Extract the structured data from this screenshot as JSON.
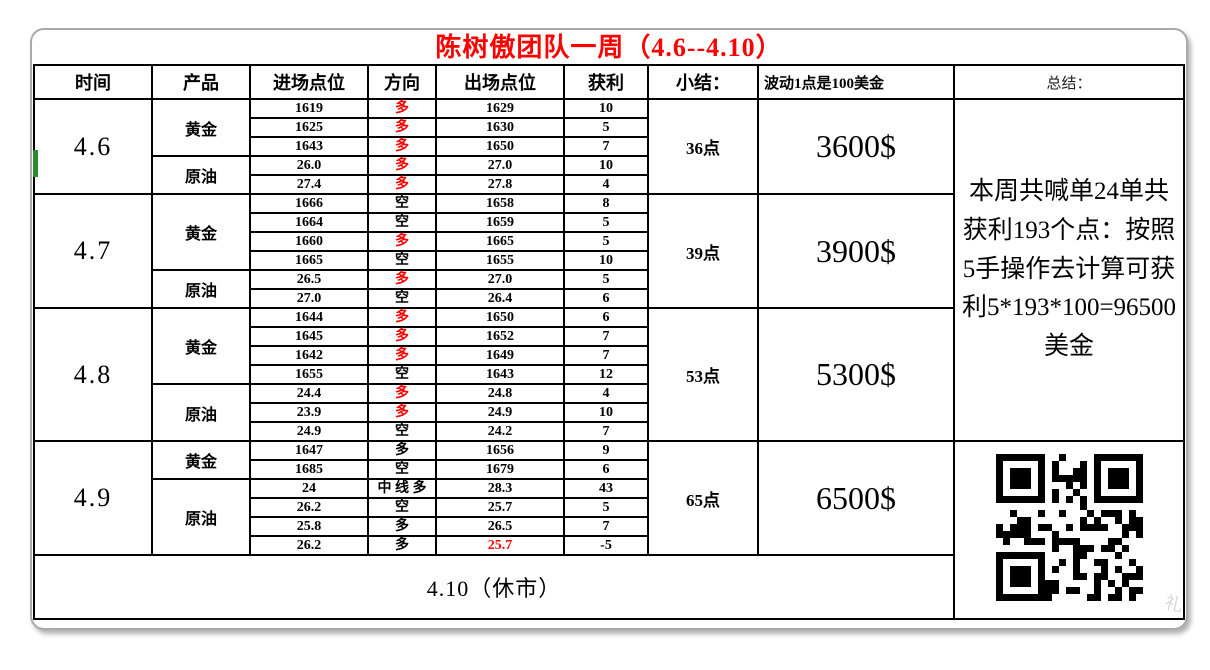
{
  "title": "陈树傲团队一周（4.6--4.10）",
  "colors": {
    "title_red": "#FF0000",
    "direction_red": "#FF0000",
    "loss_exit_red": "#FF0000",
    "table_border": "#000000",
    "card_border": "#A9A9A9",
    "green_mark": "#2E8B2E"
  },
  "headers": {
    "time": "时间",
    "product": "产品",
    "entry": "进场点位",
    "direction": "方向",
    "exit": "出场点位",
    "profit": "获利",
    "summary": "小结：",
    "note": "波动1点是100美金",
    "conclusion": "总结："
  },
  "sections": [
    {
      "date": "4.6",
      "points": "36点",
      "amount": "3600$",
      "groups": [
        {
          "product": "黄金",
          "trades": [
            {
              "entry": "1619",
              "direction": "多",
              "dir_red": true,
              "exit": "1629",
              "profit": "10"
            },
            {
              "entry": "1625",
              "direction": "多",
              "dir_red": true,
              "exit": "1630",
              "profit": "5"
            },
            {
              "entry": "1643",
              "direction": "多",
              "dir_red": true,
              "exit": "1650",
              "profit": "7"
            }
          ]
        },
        {
          "product": "原油",
          "trades": [
            {
              "entry": "26.0",
              "direction": "多",
              "dir_red": true,
              "exit": "27.0",
              "profit": "10"
            },
            {
              "entry": "27.4",
              "direction": "多",
              "dir_red": true,
              "exit": "27.8",
              "profit": "4"
            }
          ]
        }
      ]
    },
    {
      "date": "4.7",
      "points": "39点",
      "amount": "3900$",
      "groups": [
        {
          "product": "黄金",
          "trades": [
            {
              "entry": "1666",
              "direction": "空",
              "dir_red": false,
              "exit": "1658",
              "profit": "8"
            },
            {
              "entry": "1664",
              "direction": "空",
              "dir_red": false,
              "exit": "1659",
              "profit": "5"
            },
            {
              "entry": "1660",
              "direction": "多",
              "dir_red": true,
              "exit": "1665",
              "profit": "5"
            },
            {
              "entry": "1665",
              "direction": "空",
              "dir_red": false,
              "exit": "1655",
              "profit": "10"
            }
          ]
        },
        {
          "product": "原油",
          "trades": [
            {
              "entry": "26.5",
              "direction": "多",
              "dir_red": true,
              "exit": "27.0",
              "profit": "5"
            },
            {
              "entry": "27.0",
              "direction": "空",
              "dir_red": false,
              "exit": "26.4",
              "profit": "6"
            }
          ]
        }
      ]
    },
    {
      "date": "4.8",
      "points": "53点",
      "amount": "5300$",
      "groups": [
        {
          "product": "黄金",
          "trades": [
            {
              "entry": "1644",
              "direction": "多",
              "dir_red": true,
              "exit": "1650",
              "profit": "6"
            },
            {
              "entry": "1645",
              "direction": "多",
              "dir_red": true,
              "exit": "1652",
              "profit": "7"
            },
            {
              "entry": "1642",
              "direction": "多",
              "dir_red": true,
              "exit": "1649",
              "profit": "7"
            },
            {
              "entry": "1655",
              "direction": "空",
              "dir_red": false,
              "exit": "1643",
              "profit": "12"
            }
          ]
        },
        {
          "product": "原油",
          "trades": [
            {
              "entry": "24.4",
              "direction": "多",
              "dir_red": true,
              "exit": "24.8",
              "profit": "4"
            },
            {
              "entry": "23.9",
              "direction": "多",
              "dir_red": true,
              "exit": "24.9",
              "profit": "10"
            },
            {
              "entry": "24.9",
              "direction": "空",
              "dir_red": false,
              "exit": "24.2",
              "profit": "7"
            }
          ]
        }
      ]
    },
    {
      "date": "4.9",
      "points": "65点",
      "amount": "6500$",
      "groups": [
        {
          "product": "黄金",
          "trades": [
            {
              "entry": "1647",
              "direction": "多",
              "dir_red": false,
              "exit": "1656",
              "profit": "9"
            },
            {
              "entry": "1685",
              "direction": "空",
              "dir_red": false,
              "exit": "1679",
              "profit": "6"
            }
          ]
        },
        {
          "product": "原油",
          "trades": [
            {
              "entry": "24",
              "direction": "中 线 多",
              "dir_red": false,
              "exit": "28.3",
              "profit": "43"
            },
            {
              "entry": "26.2",
              "direction": "空",
              "dir_red": false,
              "exit": "25.7",
              "profit": "5"
            },
            {
              "entry": "25.8",
              "direction": "多",
              "dir_red": false,
              "exit": "26.5",
              "profit": "7"
            },
            {
              "entry": "26.2",
              "direction": "多",
              "dir_red": false,
              "exit": "25.7",
              "exit_red": true,
              "profit": "-5"
            }
          ]
        }
      ]
    }
  ],
  "conclusion_text": "本周共喊单24单共获利193个点：按照5手操作去计算可获利5*193*100=96500美金",
  "footer": {
    "closed_label": "4.10（休市）"
  },
  "watermark_glyph": "礼"
}
